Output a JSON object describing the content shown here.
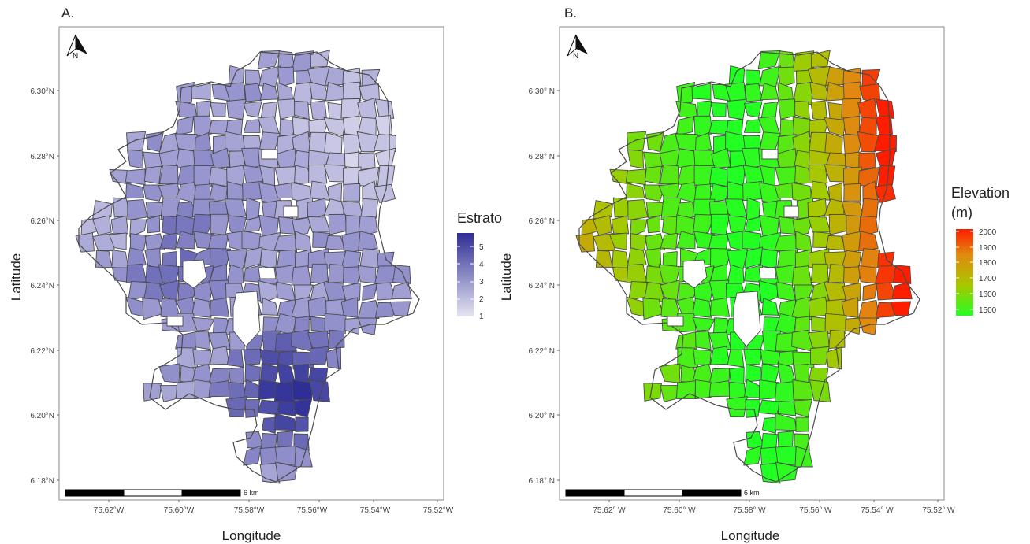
{
  "panels": [
    {
      "id": "A",
      "letter": "A.",
      "x_label": "Longitude",
      "y_label": "Latitude",
      "x_ticks": [
        "75.62°W",
        "75.60°W",
        "75.58°W",
        "75.56°W",
        "75.54°W",
        "75.52°W"
      ],
      "y_ticks": [
        "6.18°N",
        "6.20°N",
        "6.22°N",
        "6.24°N",
        "6.26°N",
        "6.28°N",
        "6.30°N"
      ],
      "north_label": "N",
      "scale_label": "6 km",
      "legend": {
        "title": "Estrato",
        "ticks": [
          "1",
          "2",
          "3",
          "4",
          "5"
        ],
        "colors": [
          "#e6e4f2",
          "#2e2e96"
        ]
      }
    },
    {
      "id": "B",
      "letter": "B.",
      "x_label": "Longitude",
      "y_label": "Latitude",
      "x_ticks": [
        "75.62° W",
        "75.60° W",
        "75.58° W",
        "75.56° W",
        "75.54° W",
        "75.52° W"
      ],
      "y_ticks": [
        "6.18° N",
        "6.20° N",
        "6.22° N",
        "6.24° N",
        "6.26° N",
        "6.28° N",
        "6.30° N"
      ],
      "north_label": "N",
      "scale_label": "6 km",
      "legend": {
        "title_line1": "Elevation",
        "title_line2": "(m)",
        "ticks": [
          "1500",
          "1600",
          "1700",
          "1800",
          "1900",
          "2000"
        ],
        "colors": [
          "#22ff22",
          "#ff1d00"
        ]
      }
    }
  ]
}
